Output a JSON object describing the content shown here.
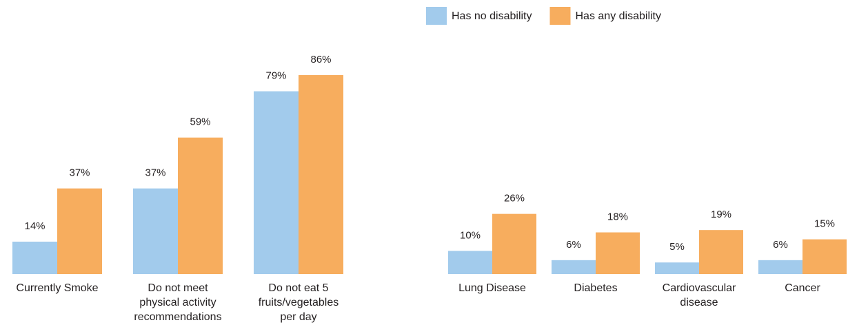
{
  "chart_data": [
    {
      "type": "bar",
      "categories": [
        "Currently Smoke",
        "Do not meet\nphysical activity\nrecommendations",
        "Do not eat 5\nfruits/vegetables\nper day"
      ],
      "series": [
        {
          "color": "#a2cbec",
          "values": [
            14,
            37,
            79
          ],
          "value_labels": [
            "14%",
            "37%",
            "79%"
          ]
        },
        {
          "color": "#f7ad5e",
          "values": [
            37,
            59,
            86
          ],
          "value_labels": [
            "37%",
            "59%",
            "86%"
          ]
        }
      ],
      "ylim": [
        0,
        100
      ]
    },
    {
      "type": "bar",
      "categories": [
        "Lung Disease",
        "Diabetes",
        "Cardiovascular\ndisease",
        "Cancer"
      ],
      "series": [
        {
          "name": "Has no disability",
          "color": "#a2cbec",
          "values": [
            10,
            6,
            5,
            6
          ],
          "value_labels": [
            "10%",
            "6%",
            "5%",
            "6%"
          ]
        },
        {
          "name": "Has any disability",
          "color": "#f7ad5e",
          "values": [
            26,
            18,
            19,
            15
          ],
          "value_labels": [
            "26%",
            "18%",
            "19%",
            "15%"
          ]
        }
      ],
      "ylim": [
        0,
        100
      ],
      "legend": "top"
    }
  ]
}
